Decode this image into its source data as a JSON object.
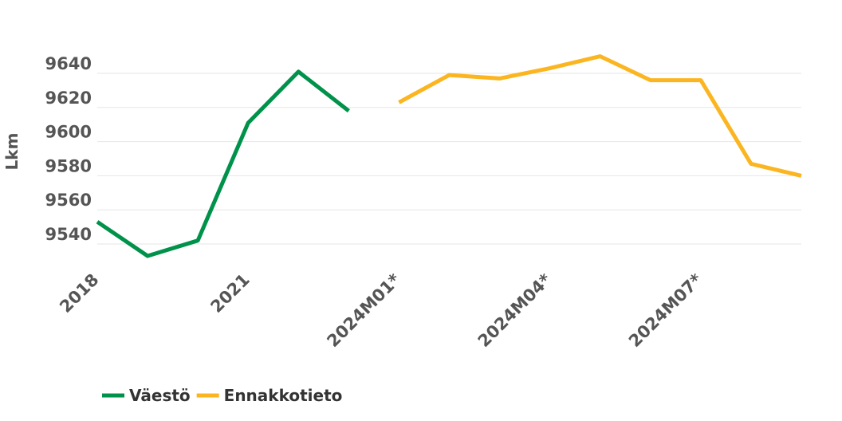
{
  "chart_data": {
    "type": "line",
    "title": "",
    "xlabel": "",
    "ylabel": "Lkm",
    "x": [
      "2018",
      "2019",
      "2020",
      "2021",
      "2022",
      "2023",
      "2024M01*",
      "2024M02*",
      "2024M03*",
      "2024M04*",
      "2024M05*",
      "2024M06*",
      "2024M07*",
      "2024M08*",
      "2024M09*"
    ],
    "x_tick_labels": [
      "2018",
      "2021",
      "2024M01*",
      "2024M04*",
      "2024M07*"
    ],
    "yticks": [
      9540,
      9560,
      9580,
      9600,
      9620,
      9640
    ],
    "ylim": [
      9520,
      9650
    ],
    "grid": true,
    "legend_position": "bottom-left",
    "series": [
      {
        "name": "Väestö",
        "color": "#00924a",
        "values": [
          9553,
          9533,
          9542,
          9611,
          9641,
          9618,
          null,
          null,
          null,
          null,
          null,
          null,
          null,
          null,
          null
        ]
      },
      {
        "name": "Ennakkotieto",
        "color": "#fbb520",
        "values": [
          null,
          null,
          null,
          null,
          null,
          null,
          9623,
          9639,
          9637,
          9643,
          9650,
          9636,
          9636,
          9587,
          9580
        ]
      }
    ]
  }
}
